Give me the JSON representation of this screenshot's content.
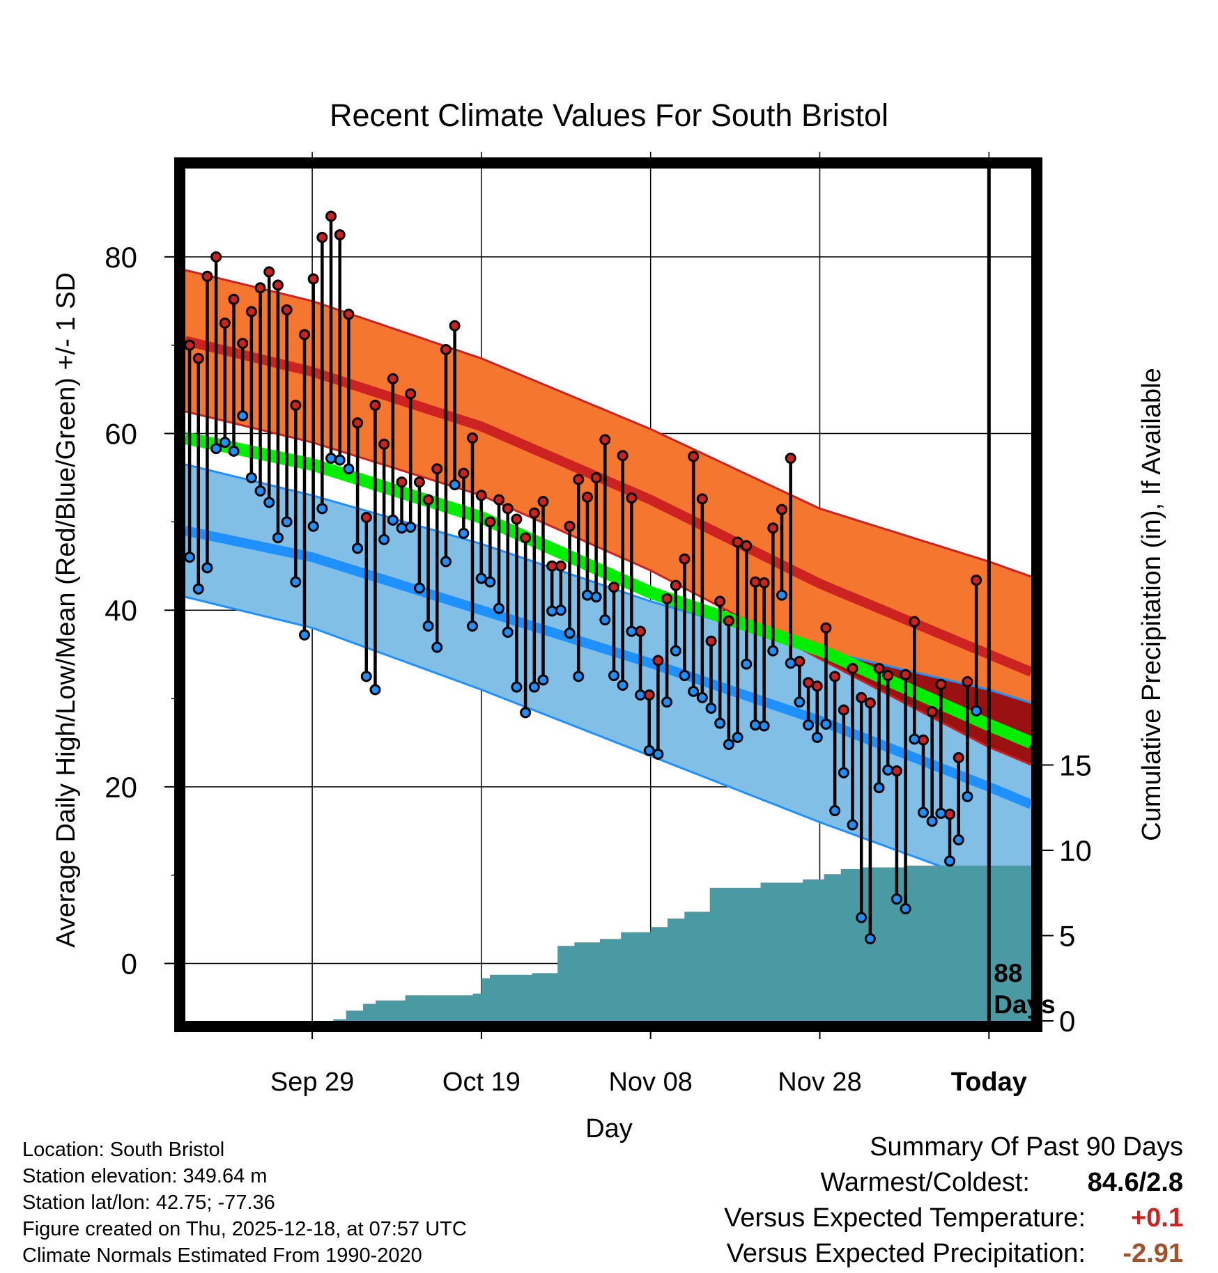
{
  "colors": {
    "high": "#cc2222",
    "low": "#1e90ff",
    "mean": "#00ee00",
    "hi_band": "#f4762f",
    "lo_band": "#82bfe7",
    "overlap": "#9b1010",
    "precip": "#4a9aa4"
  },
  "chart_data": {
    "type": "line",
    "title": "Recent Climate Values For South Bristol",
    "xlabel": "Day",
    "ylabel": "Average Daily High/Low/Mean (Red/Blue/Green) +/- 1 SD",
    "y2label": "Cumulative Precipitation (in), If Available",
    "xlim": [
      -11,
      9
    ],
    "ylim": [
      -6.5,
      90
    ],
    "y2lim": [
      0,
      50
    ],
    "x_ticks": [
      -8,
      -4,
      0,
      4,
      8
    ],
    "x_tick_labels": [
      "Sep 29",
      "Oct 19",
      "Nov 08",
      "Nov 28",
      "Today"
    ],
    "y_ticks": [
      0,
      20,
      40,
      60,
      80
    ],
    "y_tick_labels": [
      "0",
      "20",
      "40",
      "60",
      "80"
    ],
    "y2_ticks": [
      0,
      5,
      10,
      15
    ],
    "y2_tick_labels": [
      "0",
      "5",
      "10",
      "15"
    ],
    "today_x": 8,
    "today_label": [
      "88",
      "Days"
    ],
    "normals": {
      "x": [
        -11,
        -8,
        -4,
        0,
        4,
        8,
        9
      ],
      "high_mean": [
        70.5,
        67,
        60.8,
        52.5,
        43,
        35,
        33
      ],
      "high_upper": [
        78.5,
        75,
        68.5,
        60.5,
        51.5,
        45.5,
        43.8
      ],
      "high_lower": [
        62.5,
        59,
        53,
        44.5,
        34.5,
        24.5,
        22.5
      ],
      "low_mean": [
        49,
        46,
        40,
        34,
        27.5,
        20,
        18
      ],
      "low_upper": [
        56.5,
        53,
        47.5,
        41,
        35.5,
        31,
        29.5
      ],
      "low_lower": [
        41.5,
        38,
        31,
        23.5,
        16,
        9,
        8
      ],
      "mean": [
        59.5,
        56.5,
        50.5,
        42,
        35.5,
        27,
        25
      ]
    },
    "series": [
      {
        "name": "Daily High",
        "values": [
          70,
          68.5,
          77.8,
          80,
          72.5,
          75.2,
          70.2,
          73.8,
          76.5,
          78.3,
          76.8,
          74,
          63.2,
          71.2,
          77.5,
          82.2,
          84.6,
          82.5,
          73.5,
          61.2,
          50.5,
          63.2,
          58.8,
          66.2,
          54.5,
          64.5,
          54.5,
          52.5,
          56,
          69.5,
          72.2,
          55.5,
          59.5,
          53,
          50,
          52.5,
          51.5,
          50.3,
          48.2,
          51,
          52.3,
          45,
          45,
          49.5,
          54.8,
          52.8,
          55,
          59.3,
          42.6,
          57.5,
          52.7,
          37.6,
          30.4,
          34.3,
          41.3,
          42.8,
          45.8,
          57.4,
          52.6,
          36.5,
          41,
          38.8,
          47.7,
          47.3,
          43.2,
          43.1,
          49.3,
          51.4,
          57.2,
          34.2,
          31.8,
          31.4,
          38,
          32.5,
          28.7,
          33.4,
          30.1,
          29.5,
          33.4,
          32.6,
          21.8,
          32.7,
          38.7,
          25.3,
          28.5,
          31.6,
          16.9,
          23.3,
          31.9,
          43.4
        ]
      },
      {
        "name": "Daily Low",
        "values": [
          46,
          42.4,
          44.8,
          58.3,
          59,
          58,
          62,
          55,
          53.5,
          52.2,
          48.2,
          50,
          43.2,
          37.2,
          49.5,
          51.5,
          57.2,
          57,
          56,
          47,
          32.5,
          31,
          48,
          50.2,
          49.3,
          49.4,
          42.5,
          38.2,
          35.8,
          45.5,
          54.2,
          48.7,
          38.2,
          43.6,
          43.2,
          40.2,
          37.5,
          31.3,
          28.4,
          31.3,
          32.1,
          39.9,
          40,
          37.4,
          32.5,
          41.7,
          41.5,
          38.9,
          32.6,
          31.5,
          37.6,
          30.4,
          24.1,
          23.7,
          29.6,
          35.4,
          32.6,
          30.8,
          30.1,
          28.9,
          27.2,
          24.8,
          25.6,
          33.9,
          27,
          26.9,
          35.4,
          41.7,
          34,
          29.6,
          27,
          25.6,
          27.1,
          17.3,
          21.6,
          15.7,
          5.2,
          2.8,
          19.9,
          21.9,
          7.3,
          6.2,
          25.4,
          17.1,
          16.1,
          17,
          11.6,
          14,
          18.9,
          28.6
        ]
      },
      {
        "name": "Cumulative Precipitation",
        "x": [
          -7.5,
          -7.2,
          -6.8,
          -6.5,
          -6.1,
          -5.8,
          -5.5,
          -4.2,
          -4,
          -3.8,
          -2.8,
          -2.4,
          -2.2,
          -1.8,
          -1.2,
          -0.7,
          0,
          0.4,
          0.8,
          1.2,
          1.4,
          2.1,
          2.6,
          2.8,
          3.6,
          4.1,
          4.5,
          5,
          6,
          9
        ],
        "values": [
          0.1,
          0.6,
          1,
          1.2,
          1.2,
          1.5,
          1.5,
          1.6,
          2.5,
          2.7,
          2.8,
          2.8,
          4.4,
          4.6,
          4.8,
          5.2,
          5.5,
          6,
          6.4,
          6.4,
          7.8,
          7.8,
          8.1,
          8.1,
          8.3,
          8.6,
          8.9,
          9,
          9.1,
          9.1
        ]
      }
    ]
  },
  "info": [
    "Location: South Bristol",
    "Station elevation: 349.64 m",
    "Station lat/lon: 42.75; -77.36",
    "Figure created on Thu, 2025-12-18, at 07:57 UTC",
    "Climate Normals Estimated From 1990-2020"
  ],
  "summary": {
    "title": "Summary Of Past 90 Days",
    "warmest_coldest_label": "Warmest/Coldest:",
    "warmest_coldest_value": "84.6/2.8",
    "temp_label": "Versus Expected Temperature:",
    "temp_value": "+0.1",
    "precip_label": "Versus Expected Precipitation:",
    "precip_value": "-2.91"
  }
}
